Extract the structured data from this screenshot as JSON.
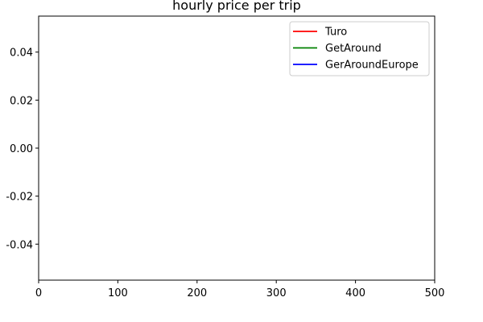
{
  "chart_data": {
    "type": "line",
    "title": "hourly price per trip",
    "xlabel": "",
    "ylabel": "",
    "xlim": [
      0,
      500
    ],
    "ylim": [
      -0.055,
      0.055
    ],
    "xticks": [
      0,
      100,
      200,
      300,
      400,
      500
    ],
    "yticks": [
      -0.04,
      -0.02,
      0.0,
      0.02,
      0.04
    ],
    "ytick_labels": [
      "-0.04",
      "-0.02",
      "0.00",
      "0.02",
      "0.04"
    ],
    "grid": false,
    "legend_position": "top-right",
    "series": [
      {
        "name": "Turo",
        "color": "#ff0000",
        "x": [],
        "y": []
      },
      {
        "name": "GetAround",
        "color": "#008000",
        "x": [],
        "y": []
      },
      {
        "name": "GerAroundEurope",
        "color": "#0000ff",
        "x": [],
        "y": []
      }
    ]
  }
}
